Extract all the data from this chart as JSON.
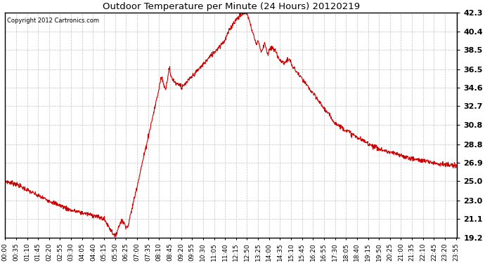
{
  "title": "Outdoor Temperature per Minute (24 Hours) 20120219",
  "copyright_text": "Copyright 2012 Cartronics.com",
  "line_color": "#cc0000",
  "background_color": "#ffffff",
  "grid_color": "#bbbbbb",
  "ylim": [
    19.2,
    42.3
  ],
  "yticks": [
    19.2,
    21.1,
    23.0,
    25.0,
    26.9,
    28.8,
    30.8,
    32.7,
    34.6,
    36.5,
    38.5,
    40.4,
    42.3
  ],
  "total_minutes": 1440,
  "xtick_interval": 35,
  "x_tick_labels": [
    "00:00",
    "00:35",
    "01:10",
    "01:45",
    "02:20",
    "02:55",
    "03:30",
    "04:05",
    "04:40",
    "05:15",
    "05:50",
    "06:25",
    "07:00",
    "07:35",
    "08:10",
    "08:45",
    "09:20",
    "09:55",
    "10:30",
    "11:05",
    "11:40",
    "12:15",
    "12:50",
    "13:25",
    "14:00",
    "14:35",
    "15:10",
    "15:45",
    "16:20",
    "16:55",
    "17:30",
    "18:05",
    "18:40",
    "19:15",
    "19:50",
    "20:25",
    "21:00",
    "21:35",
    "22:10",
    "22:45",
    "23:20",
    "23:55"
  ],
  "figwidth": 6.9,
  "figheight": 3.75,
  "dpi": 100
}
